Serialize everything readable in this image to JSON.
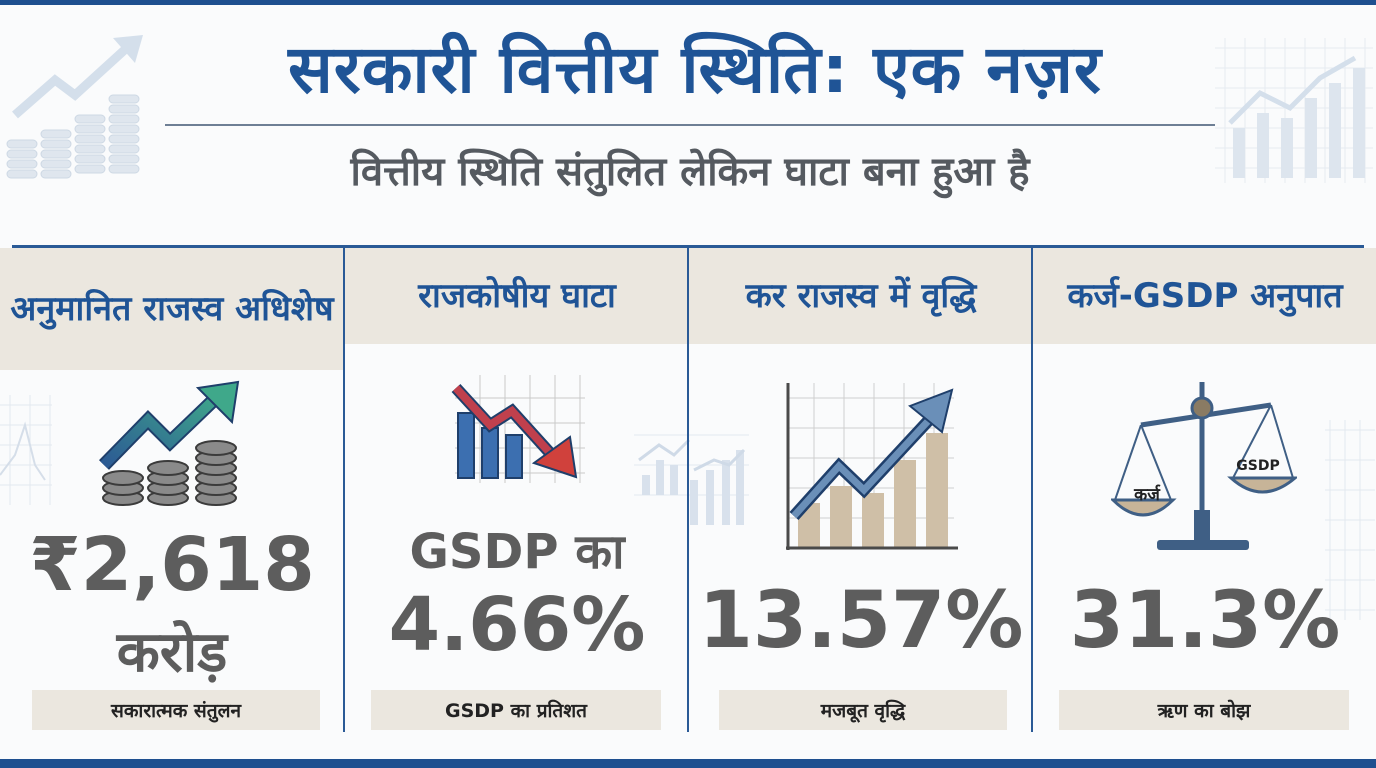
{
  "header": {
    "title": "सरकारी वित्तीय स्थिति: एक नज़र",
    "subtitle": "वित्तीय स्थिति संतुलित लेकिन घाटा बना हुआ है"
  },
  "cards": [
    {
      "title": "अनुमानित राजस्व अधिशेष",
      "value_line1": "₹2,618",
      "value_line2": "करोड़",
      "caption": "सकारात्मक संतुलन",
      "icon": "rising-arrow-coins-icon"
    },
    {
      "title": "राजकोषीय घाटा",
      "value_prefix": "GSDP का",
      "value": "4.66%",
      "caption": "GSDP का प्रतिशत",
      "icon": "declining-chart-icon"
    },
    {
      "title": "कर राजस्व में वृद्धि",
      "value": "13.57%",
      "caption": "मजबूत वृद्धि",
      "icon": "growth-chart-icon"
    },
    {
      "title": "कर्ज-GSDP अनुपात",
      "value": "31.3%",
      "caption": "ऋण का बोझ",
      "icon": "balance-scale-icon",
      "scale_left_label": "कर्ज",
      "scale_right_label": "GSDP"
    }
  ],
  "colors": {
    "primary_blue": "#1f5496",
    "value_gray": "#5d5d5d",
    "panel_beige": "#ebe7df",
    "red_arrow": "#d0413c",
    "green_arrow": "#3fa88a"
  }
}
